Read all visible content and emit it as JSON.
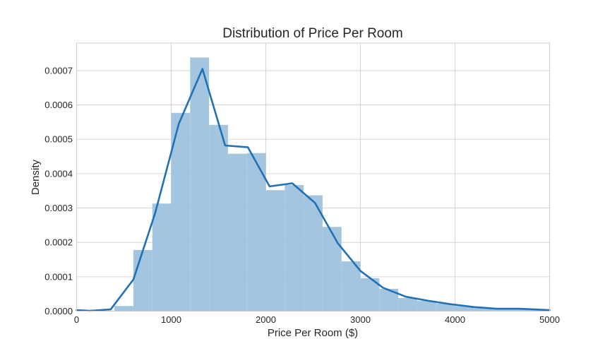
{
  "chart_data": {
    "type": "bar",
    "title": "Distribution of Price Per Room",
    "xlabel": "Price Per Room ($)",
    "ylabel": "Density",
    "xlim": [
      0,
      5000
    ],
    "ylim": [
      0,
      0.00078
    ],
    "grid": true,
    "xticks": [
      0,
      1000,
      2000,
      3000,
      4000,
      5000
    ],
    "xtick_labels": [
      "0",
      "1000",
      "2000",
      "3000",
      "4000",
      "5000"
    ],
    "yticks": [
      0,
      0.0001,
      0.0002,
      0.0003,
      0.0004,
      0.0005,
      0.0006,
      0.0007
    ],
    "ytick_labels": [
      "0.0000",
      "0.0001",
      "0.0002",
      "0.0003",
      "0.0004",
      "0.0005",
      "0.0006",
      "0.0007"
    ],
    "histogram": {
      "bin_edges": [
        400,
        600,
        800,
        1000,
        1200,
        1400,
        1600,
        1800,
        2000,
        2200,
        2400,
        2600,
        2800,
        3000,
        3200,
        3400,
        3600,
        3800,
        4000,
        4200,
        4400,
        4600,
        4800,
        5000
      ],
      "values": [
        1.5e-05,
        0.000178,
        0.000313,
        0.000577,
        0.000738,
        0.000542,
        0.000458,
        0.00046,
        0.000352,
        0.000367,
        0.000337,
        0.000245,
        0.000145,
        9.6e-05,
        6.5e-05,
        3.8e-05,
        3e-05,
        2.2e-05,
        1.5e-05,
        1e-05,
        7e-06,
        6e-06,
        3e-06
      ],
      "color": "#a3c5df"
    },
    "kde": {
      "x": [
        0,
        140,
        360,
        600,
        830,
        1080,
        1330,
        1570,
        1810,
        2040,
        2280,
        2520,
        2760,
        3000,
        3240,
        3480,
        3720,
        3960,
        4200,
        4440,
        4680,
        4920,
        5000
      ],
      "y": [
        3e-06,
        1e-06,
        5e-06,
        9.2e-05,
        0.000285,
        0.000545,
        0.000705,
        0.000482,
        0.000477,
        0.000363,
        0.000372,
        0.000315,
        0.000198,
        0.000117,
        6.8e-05,
        4.2e-05,
        3e-05,
        2e-05,
        1.2e-05,
        7e-06,
        7e-06,
        4e-06,
        3e-06
      ],
      "color": "#2171b5"
    }
  }
}
